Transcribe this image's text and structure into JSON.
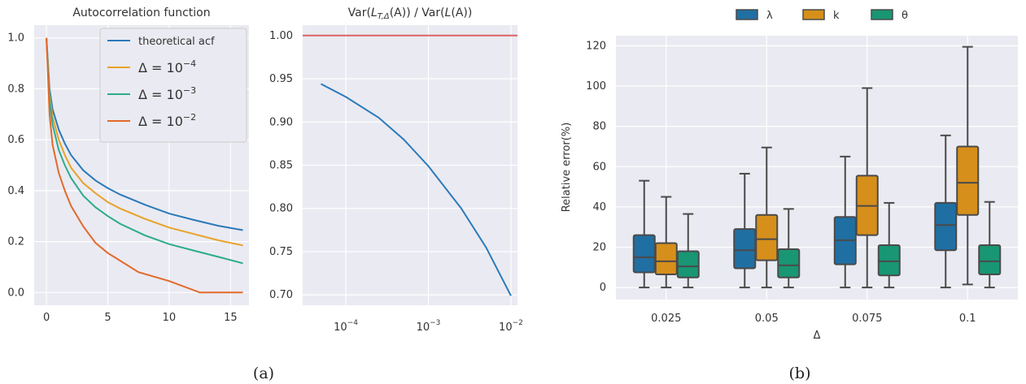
{
  "captions": {
    "a": "(a)",
    "b": "(b)"
  },
  "chart_data": [
    {
      "id": "acf",
      "type": "line",
      "title": "Autocorrelation function",
      "xlim": [
        -1,
        16.5
      ],
      "ylim": [
        -0.05,
        1.05
      ],
      "xticks": [
        "0",
        "5",
        "10",
        "15"
      ],
      "xtick_values": [
        0,
        5,
        10,
        15
      ],
      "yticks": [
        "0.0",
        "0.2",
        "0.4",
        "0.6",
        "0.8",
        "1.0"
      ],
      "ytick_values": [
        0,
        0.2,
        0.4,
        0.6,
        0.8,
        1.0
      ],
      "legend_position": "upper-right",
      "grid": true,
      "series": [
        {
          "label_text": "theoretical acf",
          "color": "#2a7ab9",
          "points": [
            [
              0,
              1.0
            ],
            [
              0.25,
              0.8
            ],
            [
              0.5,
              0.72
            ],
            [
              1,
              0.64
            ],
            [
              1.5,
              0.585
            ],
            [
              2,
              0.54
            ],
            [
              3,
              0.48
            ],
            [
              4,
              0.44
            ],
            [
              5,
              0.41
            ],
            [
              6,
              0.385
            ],
            [
              8,
              0.345
            ],
            [
              10,
              0.31
            ],
            [
              12,
              0.285
            ],
            [
              14,
              0.262
            ],
            [
              16,
              0.245
            ]
          ]
        },
        {
          "label_tex": {
            "pre": "Δ = 10",
            "sup": "−4"
          },
          "color": "#e8a227",
          "points": [
            [
              0,
              1.0
            ],
            [
              0.25,
              0.78
            ],
            [
              0.5,
              0.69
            ],
            [
              1,
              0.6
            ],
            [
              1.5,
              0.54
            ],
            [
              2,
              0.49
            ],
            [
              3,
              0.43
            ],
            [
              4,
              0.39
            ],
            [
              5,
              0.355
            ],
            [
              6,
              0.33
            ],
            [
              8,
              0.29
            ],
            [
              10,
              0.255
            ],
            [
              12,
              0.23
            ],
            [
              14,
              0.205
            ],
            [
              16,
              0.185
            ]
          ]
        },
        {
          "label_tex": {
            "pre": "Δ = 10",
            "sup": "−3"
          },
          "color": "#2bab8c",
          "points": [
            [
              0,
              1.0
            ],
            [
              0.25,
              0.76
            ],
            [
              0.5,
              0.66
            ],
            [
              1,
              0.56
            ],
            [
              1.5,
              0.5
            ],
            [
              2,
              0.45
            ],
            [
              3,
              0.38
            ],
            [
              4,
              0.335
            ],
            [
              5,
              0.3
            ],
            [
              6,
              0.27
            ],
            [
              8,
              0.225
            ],
            [
              10,
              0.19
            ],
            [
              12,
              0.165
            ],
            [
              14,
              0.14
            ],
            [
              16,
              0.115
            ]
          ]
        },
        {
          "label_tex": {
            "pre": "Δ = 10",
            "sup": "−2"
          },
          "color": "#e3692a",
          "points": [
            [
              0,
              1.0
            ],
            [
              0.25,
              0.7
            ],
            [
              0.5,
              0.58
            ],
            [
              1,
              0.47
            ],
            [
              1.5,
              0.4
            ],
            [
              2,
              0.34
            ],
            [
              3,
              0.26
            ],
            [
              4,
              0.195
            ],
            [
              5,
              0.155
            ],
            [
              5.5,
              0.14
            ],
            [
              7.5,
              0.08
            ],
            [
              10,
              0.045
            ],
            [
              12.5,
              0.0
            ],
            [
              16,
              0.0
            ]
          ]
        }
      ]
    },
    {
      "id": "var-ratio",
      "type": "line",
      "title_parts": {
        "a": "Var(",
        "L": "L",
        "sub": "T,Δ",
        "b": "(A)) / Var(",
        "L2": "L",
        "c": "(A))"
      },
      "x_scale": "log",
      "xlim": [
        3e-05,
        0.012
      ],
      "ylim": [
        0.688,
        1.012
      ],
      "xticks": [
        {
          "base": "10",
          "exp": "−4",
          "value": 0.0001
        },
        {
          "base": "10",
          "exp": "−3",
          "value": 0.001
        },
        {
          "base": "10",
          "exp": "−2",
          "value": 0.01
        }
      ],
      "yticks": [
        "0.70",
        "0.75",
        "0.80",
        "0.85",
        "0.90",
        "0.95",
        "1.00"
      ],
      "ytick_values": [
        0.7,
        0.75,
        0.8,
        0.85,
        0.9,
        0.95,
        1.0
      ],
      "grid": true,
      "reference_line": {
        "y": 1.0,
        "color": "#d96464"
      },
      "series": [
        {
          "color": "#2a7ab9",
          "points": [
            [
              5e-05,
              0.944
            ],
            [
              0.0001,
              0.929
            ],
            [
              0.00025,
              0.905
            ],
            [
              0.0005,
              0.88
            ],
            [
              0.001,
              0.849
            ],
            [
              0.0025,
              0.8
            ],
            [
              0.005,
              0.755
            ],
            [
              0.01,
              0.699
            ]
          ]
        }
      ]
    },
    {
      "id": "relative-error",
      "type": "box",
      "xlabel": "Δ",
      "ylabel": "Relative error(%)",
      "ylim": [
        -6,
        125
      ],
      "yticks": [
        "0",
        "20",
        "40",
        "60",
        "80",
        "100",
        "120"
      ],
      "ytick_values": [
        0,
        20,
        40,
        60,
        80,
        100,
        120
      ],
      "categories": [
        "0.025",
        "0.05",
        "0.075",
        "0.1"
      ],
      "legend_position": "top-center",
      "grid": true,
      "series": [
        {
          "name": "λ",
          "color": "#1f6fa3",
          "boxes": [
            {
              "whislo": 0,
              "q1": 7.5,
              "med": 15,
              "q3": 26,
              "whishi": 53
            },
            {
              "whislo": 0,
              "q1": 9.5,
              "med": 18.5,
              "q3": 29,
              "whishi": 56.5
            },
            {
              "whislo": 0,
              "q1": 11.5,
              "med": 23.5,
              "q3": 35,
              "whishi": 65
            },
            {
              "whislo": 0,
              "q1": 18.5,
              "med": 31,
              "q3": 42,
              "whishi": 75.5
            }
          ]
        },
        {
          "name": "k",
          "color": "#d68f1a",
          "boxes": [
            {
              "whislo": 0,
              "q1": 6.5,
              "med": 13,
              "q3": 22,
              "whishi": 45
            },
            {
              "whislo": 0,
              "q1": 13.5,
              "med": 24,
              "q3": 36,
              "whishi": 69.5
            },
            {
              "whislo": 0,
              "q1": 26,
              "med": 40.5,
              "q3": 55.5,
              "whishi": 99
            },
            {
              "whislo": 1.5,
              "q1": 36,
              "med": 52,
              "q3": 70,
              "whishi": 119.5
            }
          ]
        },
        {
          "name": "θ",
          "color": "#199673",
          "boxes": [
            {
              "whislo": 0,
              "q1": 5,
              "med": 10.5,
              "q3": 18,
              "whishi": 36.5
            },
            {
              "whislo": 0,
              "q1": 5,
              "med": 11,
              "q3": 19,
              "whishi": 39
            },
            {
              "whislo": 0,
              "q1": 6,
              "med": 13,
              "q3": 21,
              "whishi": 42
            },
            {
              "whislo": 0,
              "q1": 6.5,
              "med": 13,
              "q3": 21,
              "whishi": 42.5
            }
          ]
        }
      ]
    }
  ]
}
